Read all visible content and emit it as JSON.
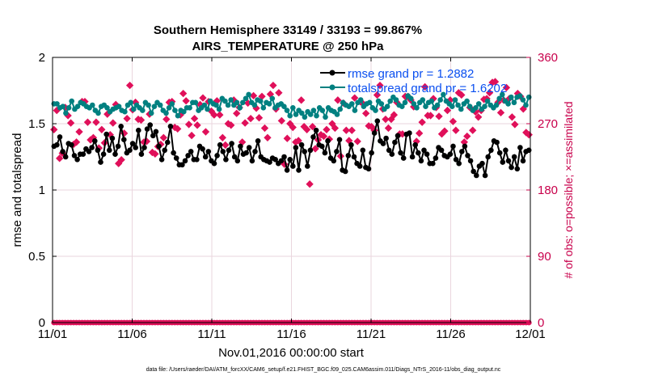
{
  "chart_data": {
    "type": "line",
    "title": "Southern Hemisphere 33149 / 33193 = 99.867%",
    "subtitle": "AIRS_TEMPERATURE @ 250 hPa",
    "xlabel": "Nov.01,2016 00:00:00 start",
    "ylabel": "rmse and totalspread",
    "ylabel_right": "# of obs: o=possible; ×=assimilated",
    "footer": "data file: /Users/raeder/DAI/ATM_forcXX/CAM6_setup/f.e21.FHIST_BGC.f09_025.CAM6assim.011/Diags_NTrS_2016-11/obs_diag_output.nc",
    "x_ticks": [
      "11/01",
      "11/06",
      "11/11",
      "11/16",
      "11/21",
      "11/26",
      "12/01"
    ],
    "x_unit": "days since Nov.01,2016 00:00:00",
    "xlim": [
      0,
      30
    ],
    "ylim": [
      0,
      2
    ],
    "y_ticks": [
      "0",
      "0.5",
      "1",
      "1.5",
      "2"
    ],
    "ylim_right": [
      0,
      360
    ],
    "y_ticks_right": [
      "0",
      "90",
      "180",
      "270",
      "360"
    ],
    "grid": true,
    "legend_position": "top-right",
    "colors": {
      "rmse": "#000000",
      "totalspread": "#008080",
      "obs": "#e0105a",
      "right_axis": "#c8004b",
      "legend_text": "#0a4ff0",
      "grid": "#ead6de"
    },
    "series": [
      {
        "name": "rmse grand pr = 1.2882",
        "axis": "left",
        "values": [
          1.33,
          1.34,
          1.4,
          1.29,
          1.25,
          1.35,
          1.34,
          1.26,
          1.23,
          1.27,
          1.27,
          1.31,
          1.29,
          1.32,
          1.37,
          1.3,
          1.21,
          1.27,
          1.42,
          1.3,
          1.39,
          1.27,
          1.33,
          1.48,
          1.38,
          1.28,
          1.3,
          1.35,
          1.32,
          1.45,
          1.27,
          1.32,
          1.46,
          1.49,
          1.41,
          1.44,
          1.33,
          1.23,
          1.3,
          1.36,
          1.48,
          1.28,
          1.24,
          1.19,
          1.19,
          1.22,
          1.26,
          1.29,
          1.23,
          1.23,
          1.33,
          1.31,
          1.25,
          1.29,
          1.22,
          1.2,
          1.26,
          1.34,
          1.29,
          1.23,
          1.3,
          1.35,
          1.25,
          1.22,
          1.33,
          1.27,
          1.28,
          1.32,
          1.22,
          1.29,
          1.37,
          1.25,
          1.23,
          1.22,
          1.21,
          1.24,
          1.23,
          1.2,
          1.22,
          1.25,
          1.15,
          1.23,
          1.18,
          1.32,
          1.15,
          1.34,
          1.29,
          1.18,
          1.3,
          1.4,
          1.45,
          1.34,
          1.33,
          1.28,
          1.37,
          1.24,
          1.22,
          1.29,
          1.38,
          1.15,
          1.14,
          1.26,
          1.34,
          1.25,
          1.2,
          1.18,
          1.3,
          1.17,
          1.16,
          1.28,
          1.43,
          1.52,
          1.37,
          1.35,
          1.39,
          1.3,
          1.27,
          1.36,
          1.41,
          1.28,
          1.24,
          1.42,
          1.43,
          1.25,
          1.34,
          1.28,
          1.22,
          1.3,
          1.27,
          1.2,
          1.2,
          1.24,
          1.32,
          1.3,
          1.26,
          1.25,
          1.27,
          1.33,
          1.23,
          1.2,
          1.29,
          1.33,
          1.26,
          1.22,
          1.14,
          1.11,
          1.18,
          1.2,
          1.11,
          1.25,
          1.3,
          1.37,
          1.36,
          1.28,
          1.21,
          1.3,
          1.22,
          1.17,
          1.25,
          1.16,
          1.32,
          1.22,
          1.29,
          1.3
        ]
      },
      {
        "name": "totalspread grand pr = 1.6202",
        "axis": "left",
        "values": [
          1.65,
          1.65,
          1.62,
          1.63,
          1.58,
          1.62,
          1.67,
          1.61,
          1.63,
          1.66,
          1.65,
          1.63,
          1.62,
          1.64,
          1.6,
          1.58,
          1.63,
          1.64,
          1.62,
          1.59,
          1.61,
          1.62,
          1.63,
          1.6,
          1.59,
          1.64,
          1.66,
          1.61,
          1.64,
          1.62,
          1.6,
          1.66,
          1.64,
          1.58,
          1.63,
          1.66,
          1.64,
          1.6,
          1.58,
          1.62,
          1.65,
          1.6,
          1.56,
          1.6,
          1.59,
          1.62,
          1.62,
          1.66,
          1.66,
          1.6,
          1.62,
          1.64,
          1.61,
          1.67,
          1.65,
          1.64,
          1.61,
          1.69,
          1.67,
          1.64,
          1.68,
          1.64,
          1.66,
          1.62,
          1.66,
          1.69,
          1.72,
          1.66,
          1.64,
          1.68,
          1.67,
          1.62,
          1.66,
          1.65,
          1.69,
          1.62,
          1.64,
          1.65,
          1.63,
          1.6,
          1.56,
          1.62,
          1.57,
          1.6,
          1.58,
          1.55,
          1.59,
          1.57,
          1.6,
          1.56,
          1.62,
          1.6,
          1.55,
          1.62,
          1.6,
          1.59,
          1.57,
          1.61,
          1.66,
          1.64,
          1.63,
          1.65,
          1.6,
          1.66,
          1.68,
          1.63,
          1.65,
          1.66,
          1.62,
          1.6,
          1.67,
          1.65,
          1.61,
          1.63,
          1.67,
          1.7,
          1.68,
          1.64,
          1.63,
          1.66,
          1.71,
          1.69,
          1.65,
          1.62,
          1.66,
          1.68,
          1.63,
          1.66,
          1.67,
          1.62,
          1.64,
          1.68,
          1.72,
          1.67,
          1.65,
          1.63,
          1.68,
          1.64,
          1.61,
          1.65,
          1.67,
          1.63,
          1.6,
          1.62,
          1.65,
          1.61,
          1.63,
          1.67,
          1.64,
          1.62,
          1.64,
          1.69,
          1.72,
          1.67,
          1.65,
          1.7,
          1.66,
          1.7,
          1.71,
          1.68,
          1.64,
          1.7
        ]
      },
      {
        "name": "obs possible",
        "axis": "right",
        "marker": "o",
        "values": [
          0,
          0,
          0,
          0,
          0,
          0,
          0,
          0,
          0,
          0,
          0,
          0,
          0,
          0,
          0,
          0,
          0,
          0,
          0,
          0,
          0,
          0,
          0,
          0,
          0,
          0,
          0,
          0,
          0,
          0,
          0,
          0,
          0,
          0,
          0,
          0,
          0,
          0,
          0,
          0,
          0,
          0,
          0,
          0,
          0,
          0,
          0,
          0,
          0,
          0,
          0,
          0,
          0,
          0,
          0,
          0,
          0,
          0,
          0,
          0,
          0,
          0,
          0,
          0,
          0,
          0,
          0,
          0,
          0,
          0,
          0,
          0,
          0,
          0,
          0,
          0,
          0,
          0,
          0,
          0,
          0,
          0,
          0,
          0,
          0,
          0,
          0,
          0,
          0,
          0,
          0,
          0,
          0,
          0,
          0,
          0,
          0,
          0,
          0,
          0,
          0,
          0,
          0,
          0,
          0,
          0,
          0,
          0,
          0,
          0,
          0,
          0,
          0,
          0,
          0,
          0,
          0,
          0,
          0,
          0,
          0,
          0,
          0,
          0,
          0,
          0,
          0,
          0,
          0,
          0,
          0,
          0,
          0,
          0,
          0,
          0,
          0,
          0,
          0,
          0,
          0,
          0,
          0,
          0,
          0,
          0,
          0,
          0,
          0,
          0,
          0,
          0,
          0,
          0,
          0,
          0,
          0,
          0,
          0,
          0,
          0,
          0,
          0,
          0,
          0,
          0,
          0,
          0,
          0,
          0
        ]
      },
      {
        "name": "obs assimilated",
        "axis": "right",
        "marker": "x",
        "values": [
          262,
          288,
          223,
          230,
          292,
          281,
          271,
          242,
          245,
          259,
          300,
          300,
          272,
          248,
          251,
          272,
          237,
          262,
          244,
          283,
          255,
          271,
          296,
          216,
          221,
          257,
          277,
          322,
          289,
          299,
          276,
          275,
          245,
          246,
          283,
          231,
          229,
          239,
          242,
          251,
          276,
          299,
          300,
          265,
          263,
          282,
          311,
          301,
          269,
          254,
          277,
          268,
          296,
          305,
          259,
          300,
          287,
          282,
          301,
          282,
          251,
          241,
          270,
          268,
          302,
          284,
          292,
          245,
          271,
          298,
          277,
          308,
          291,
          278,
          307,
          264,
          251,
          310,
          322,
          290,
          312,
          274,
          215,
          250,
          270,
          265,
          245,
          247,
          302,
          266,
          262,
          188,
          266,
          236,
          248,
          255,
          253,
          262,
          249,
          270,
          264,
          302,
          226,
          298,
          261,
          247,
          261,
          305,
          246,
          300,
          297,
          284,
          267,
          266,
          261,
          309,
          322,
          290,
          276,
          264,
          276,
          282,
          299,
          256,
          256,
          307,
          307,
          302,
          293,
          246,
          257,
          272,
          320,
          281,
          281,
          304,
          292,
          280,
          256,
          260,
          288,
          302,
          273,
          261,
          312,
          309,
          245,
          253,
          292,
          261,
          286,
          279,
          288,
          303,
          304,
          312,
          326,
          327,
          299,
          285,
          302,
          319,
          304,
          279,
          269,
          311,
          307,
          290,
          258,
          255
        ]
      }
    ]
  }
}
